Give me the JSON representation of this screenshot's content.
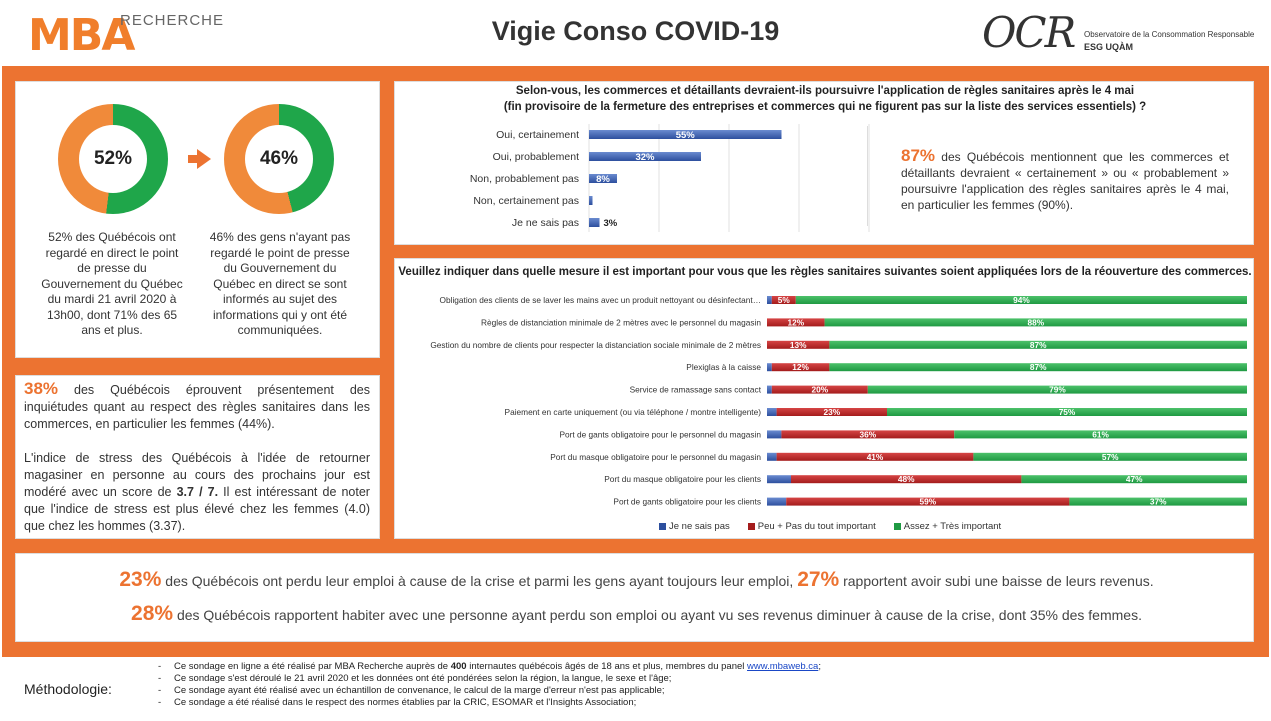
{
  "header": {
    "logo_mba": "MBA",
    "logo_recherche": "RECHERCHE",
    "title": "Vigie Conso COVID-19",
    "ocr_logo": "OCR",
    "ocr_line1": "Observatoire de la Consommation Responsable",
    "ocr_line2": "ESG UQÀM"
  },
  "colors": {
    "orange": "#ec7331",
    "green": "#1f9a43",
    "red": "#a41c1c",
    "blue": "#2d4f9e"
  },
  "donuts": {
    "left": {
      "value": "52%",
      "fraction": 0.52,
      "text": "52% des Québécois ont regardé en direct le point de presse du Gouvernement du Québec du mardi 21 avril 2020 à 13h00, dont 71% des 65 ans et plus."
    },
    "right": {
      "value": "46%",
      "fraction": 0.46,
      "text": "46% des gens n'ayant pas regardé le point de presse du Gouvernement du Québec en direct se sont informés au sujet des informations qui y ont été communiquées."
    }
  },
  "stress": {
    "pct": "38%",
    "p1": "des Québécois éprouvent présentement des inquiétudes quant au respect des règles sanitaires dans les commerces, en particulier les femmes (44%).",
    "p2a": "L'indice de stress des Québécois à l'idée de retourner magasiner en personne au cours des prochains jour est modéré avec un score de",
    "score": "3.7 / 7.",
    "p2b": "Il est intéressant de noter que l'indice de stress est plus élevé chez les femmes (4.0) que chez les hommes (3.37)."
  },
  "q1": {
    "title_line1": "Selon-vous, les commerces et détaillants devraient-ils poursuivre l'application de règles sanitaires après le 4 mai",
    "title_line2": "(fin provisoire de la fermeture des entreprises et commerces qui ne figurent pas sur la liste des services essentiels) ?",
    "highlight_pct": "87%",
    "highlight_text": "des Québécois mentionnent que les commerces et détaillants devraient « certainement » ou « probablement » poursuivre l'application des règles sanitaires après le 4 mai, en particulier les femmes (90%)."
  },
  "q2": {
    "title": "Veuillez indiquer dans quelle mesure il est important pour vous que les règles sanitaires suivantes soient appliquées lors de la réouverture des commerces.",
    "legend": [
      "Je ne sais pas",
      "Peu + Pas du tout important",
      "Assez + Très important"
    ]
  },
  "chart_data": [
    {
      "type": "bar",
      "categories": [
        "Oui, certainement",
        "Oui, probablement",
        "Non, probablement pas",
        "Non, certainement  pas",
        "Je ne sais pas"
      ],
      "values": [
        55,
        32,
        8,
        1,
        3
      ],
      "labels": [
        "55%",
        "32%",
        "8%",
        "",
        "3%"
      ]
    },
    {
      "type": "bar",
      "stacked": true,
      "categories": [
        "Obligation des clients de se laver les mains avec un produit nettoyant ou désinfectant…",
        "Règles de distanciation minimale de 2 mètres avec le personnel du magasin",
        "Gestion du nombre de clients pour respecter la distanciation sociale minimale de 2 mètres",
        "Plexiglas à la caisse",
        "Service de ramassage sans contact",
        "Paiement en carte uniquement (ou via téléphone / montre intelligente)",
        "Port de gants obligatoire pour le personnel du magasin",
        "Port du masque obligatoire pour le personnel du magasin",
        "Port du masque obligatoire pour les clients",
        "Port de gants obligatoire pour les clients"
      ],
      "series": [
        {
          "name": "Je ne sais pas",
          "values": [
            1,
            0,
            0,
            1,
            1,
            2,
            3,
            2,
            5,
            4
          ]
        },
        {
          "name": "Peu + Pas du tout important",
          "values": [
            5,
            12,
            13,
            12,
            20,
            23,
            36,
            41,
            48,
            59
          ]
        },
        {
          "name": "Assez + Très important",
          "values": [
            94,
            88,
            87,
            87,
            79,
            75,
            61,
            57,
            47,
            37
          ]
        }
      ]
    }
  ],
  "bottom": {
    "pct1": "23%",
    "text1": "des Québécois ont perdu leur emploi à cause de la crise et parmi les gens ayant toujours leur emploi,",
    "pct2": "27%",
    "text2": "rapportent avoir subi une baisse de leurs revenus.",
    "pct3": "28%",
    "text3": "des Québécois rapportent habiter avec une personne ayant perdu son emploi ou ayant vu ses revenus diminuer à cause de la crise, dont 35% des femmes."
  },
  "methodology": {
    "label": "Méthodologie:",
    "items": [
      {
        "a": "Ce sondage en ligne a été réalisé par MBA Recherche auprès de ",
        "b": "400",
        "c": " internautes québécois âgés de 18 ans et plus, membres du panel ",
        "link": "www.mbaweb.ca",
        "d": ";"
      },
      {
        "a": "Ce sondage s'est déroulé le 21 avril 2020 et les données ont été pondérées selon la région, la langue, le sexe et l'âge;"
      },
      {
        "a": "Ce sondage ayant été réalisé avec un échantillon de convenance, le calcul de la marge d'erreur n'est pas applicable;"
      },
      {
        "a": "Ce sondage a été réalisé dans le respect des normes établies par la CRIC, ESOMAR et l'Insights Association;"
      }
    ]
  }
}
